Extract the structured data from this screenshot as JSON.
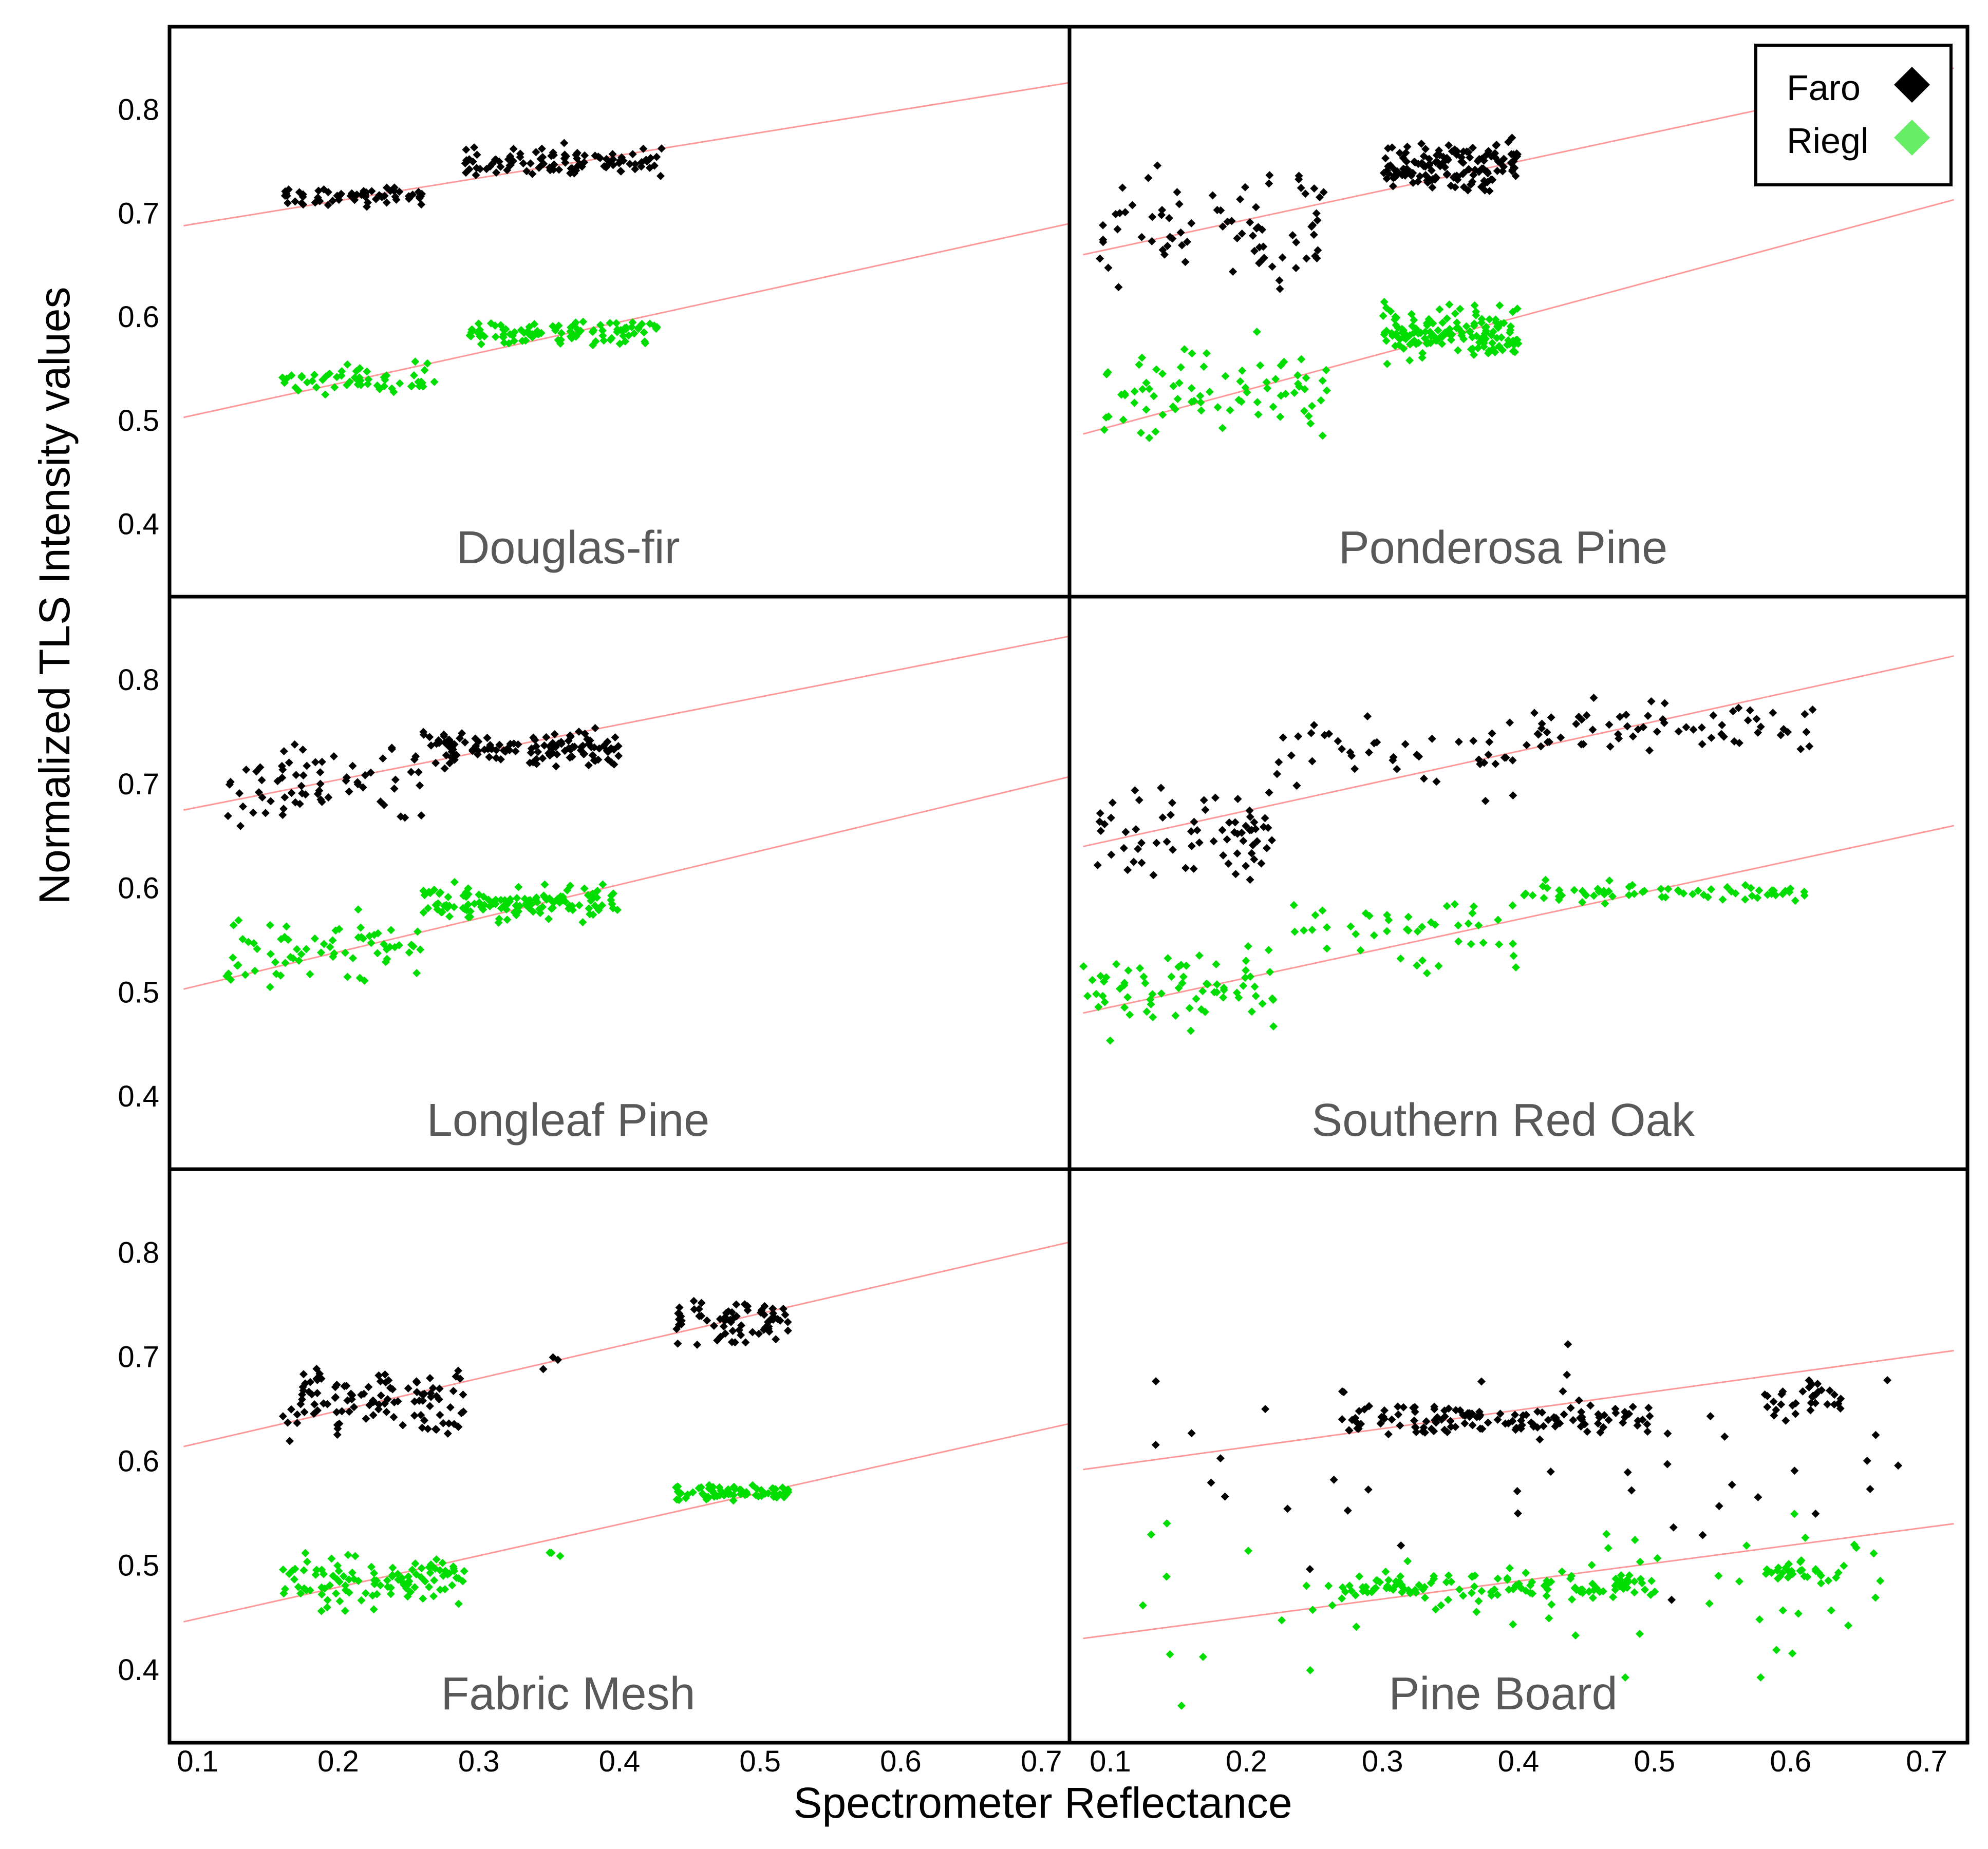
{
  "chart_data": {
    "type": "scatter",
    "ylabel": "Normalized TLS Intensity values",
    "xlabel": "Spectrometer Reflectance",
    "legend": {
      "placement": "top-right",
      "entries": [
        {
          "name": "Faro",
          "color": "#000000",
          "marker": "diamond"
        },
        {
          "name": "Riegl",
          "color": "#66ee66",
          "marker": "diamond"
        }
      ]
    },
    "colors": {
      "faro": "#000000",
      "riegl": "#00dd00",
      "trendline": "#ff9999"
    },
    "y_ticks": [
      "0.4",
      "0.5",
      "0.6",
      "0.7",
      "0.8"
    ],
    "x_ticks": [
      "0.1",
      "0.2",
      "0.3",
      "0.4",
      "0.5",
      "0.6",
      "0.7"
    ],
    "columns": [
      {
        "xlim": [
          0.08,
          0.72
        ],
        "ylim": [
          0.33,
          0.88
        ]
      },
      {
        "xlim": [
          0.07,
          0.73
        ],
        "ylim": [
          0.33,
          0.88
        ]
      }
    ],
    "panels": [
      {
        "title": "Douglas-fir",
        "row": 0,
        "col": 0,
        "trendlines": {
          "faro": [
            [
              0.09,
              0.688
            ],
            [
              0.72,
              0.826
            ]
          ],
          "riegl": [
            [
              0.09,
              0.503
            ],
            [
              0.72,
              0.69
            ]
          ]
        },
        "clusters": {
          "faro": [
            [
              0.16,
              0.26,
              0.7,
              0.73,
              60
            ],
            [
              0.29,
              0.43,
              0.73,
              0.77,
              100
            ]
          ],
          "riegl": [
            [
              0.16,
              0.27,
              0.52,
              0.56,
              55
            ],
            [
              0.29,
              0.43,
              0.57,
              0.6,
              100
            ]
          ]
        }
      },
      {
        "title": "Ponderosa Pine",
        "row": 0,
        "col": 1,
        "trendlines": {
          "faro": [
            [
              0.08,
              0.66
            ],
            [
              0.72,
              0.84
            ]
          ],
          "riegl": [
            [
              0.08,
              0.487
            ],
            [
              0.72,
              0.713
            ]
          ]
        },
        "clusters": {
          "faro": [
            [
              0.09,
              0.26,
              0.61,
              0.76,
              80
            ],
            [
              0.3,
              0.4,
              0.71,
              0.78,
              150
            ]
          ],
          "riegl": [
            [
              0.09,
              0.26,
              0.46,
              0.59,
              80
            ],
            [
              0.3,
              0.4,
              0.55,
              0.62,
              150
            ]
          ]
        }
      },
      {
        "title": "Longleaf Pine",
        "row": 1,
        "col": 0,
        "trendlines": {
          "faro": [
            [
              0.09,
              0.675
            ],
            [
              0.72,
              0.842
            ]
          ],
          "riegl": [
            [
              0.09,
              0.503
            ],
            [
              0.72,
              0.707
            ]
          ]
        },
        "clusters": {
          "faro": [
            [
              0.12,
              0.26,
              0.65,
              0.75,
              70
            ],
            [
              0.26,
              0.4,
              0.71,
              0.76,
              130
            ]
          ],
          "riegl": [
            [
              0.12,
              0.26,
              0.49,
              0.59,
              70
            ],
            [
              0.26,
              0.4,
              0.56,
              0.61,
              130
            ]
          ]
        }
      },
      {
        "title": "Southern Red Oak",
        "row": 1,
        "col": 1,
        "trendlines": {
          "faro": [
            [
              0.08,
              0.64
            ],
            [
              0.72,
              0.823
            ]
          ],
          "riegl": [
            [
              0.08,
              0.48
            ],
            [
              0.72,
              0.66
            ]
          ]
        },
        "clusters": {
          "faro": [
            [
              0.08,
              0.22,
              0.59,
              0.71,
              70
            ],
            [
              0.22,
              0.4,
              0.67,
              0.79,
              45
            ],
            [
              0.4,
              0.62,
              0.72,
              0.79,
              65
            ]
          ],
          "riegl": [
            [
              0.08,
              0.22,
              0.45,
              0.55,
              70
            ],
            [
              0.22,
              0.4,
              0.51,
              0.61,
              45
            ],
            [
              0.4,
              0.62,
              0.58,
              0.61,
              65
            ]
          ]
        }
      },
      {
        "title": "Fabric Mesh",
        "row": 2,
        "col": 0,
        "trendlines": {
          "faro": [
            [
              0.09,
              0.614
            ],
            [
              0.72,
              0.81
            ]
          ],
          "riegl": [
            [
              0.09,
              0.446
            ],
            [
              0.72,
              0.636
            ]
          ]
        },
        "clusters": {
          "faro": [
            [
              0.16,
              0.29,
              0.61,
              0.7,
              110
            ],
            [
              0.345,
              0.36,
              0.68,
              0.71,
              3
            ],
            [
              0.44,
              0.52,
              0.7,
              0.77,
              70
            ]
          ],
          "riegl": [
            [
              0.16,
              0.29,
              0.45,
              0.52,
              110
            ],
            [
              0.345,
              0.36,
              0.5,
              0.52,
              3
            ],
            [
              0.44,
              0.52,
              0.56,
              0.58,
              70
            ]
          ]
        }
      },
      {
        "title": "Pine Board",
        "row": 2,
        "col": 1,
        "trendlines": {
          "faro": [
            [
              0.08,
              0.592
            ],
            [
              0.72,
              0.706
            ]
          ],
          "riegl": [
            [
              0.08,
              0.43
            ],
            [
              0.72,
              0.54
            ]
          ]
        },
        "clusters": {
          "faro": [
            [
              0.12,
              0.68,
              0.43,
              0.78,
              55
            ],
            [
              0.27,
              0.5,
              0.62,
              0.66,
              120
            ],
            [
              0.58,
              0.64,
              0.64,
              0.68,
              30
            ]
          ],
          "riegl": [
            [
              0.12,
              0.68,
              0.34,
              0.59,
              55
            ],
            [
              0.27,
              0.5,
              0.46,
              0.5,
              120
            ],
            [
              0.58,
              0.64,
              0.48,
              0.51,
              30
            ]
          ]
        }
      }
    ]
  }
}
